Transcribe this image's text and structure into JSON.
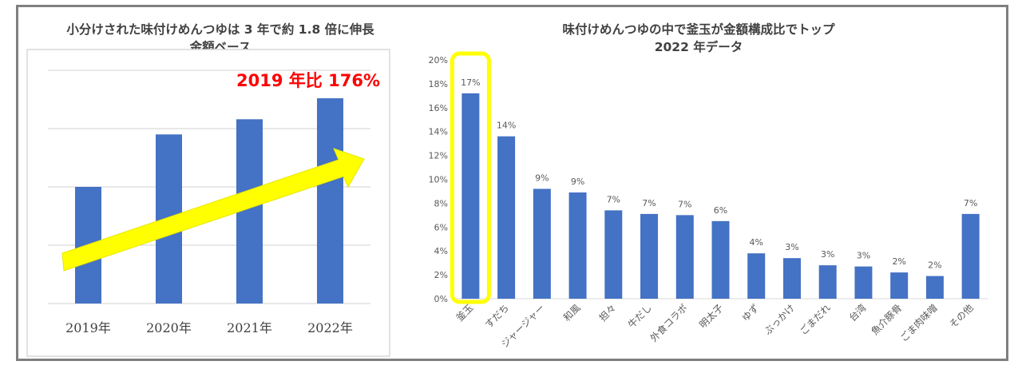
{
  "chart_data": [
    {
      "type": "bar",
      "title": "小分けされた味付けめんつゆは 3 年で約 1.8 倍に伸長",
      "subtitle": "金額ベース",
      "annotation": "2019 年比 176%",
      "categories": [
        "2019年",
        "2020年",
        "2021年",
        "2022年"
      ],
      "values": [
        100,
        145,
        158,
        176
      ],
      "value_unit": "index (2019 = 100)",
      "ylim": [
        0,
        200
      ],
      "grid": true,
      "y_tick_labels_shown": false,
      "trend_arrow": true,
      "colors": {
        "bar": "#4472c4",
        "arrow": "#ffff00",
        "annotation": "#ff0000"
      }
    },
    {
      "type": "bar",
      "title": "味付けめんつゆの中で釜玉が金額構成比でトップ",
      "subtitle": "2022 年データ",
      "categories": [
        "釜玉",
        "すだち",
        "ジャージャー",
        "和風",
        "担々",
        "牛だし",
        "外食コラボ",
        "明太子",
        "ゆず",
        "ぶっかけ",
        "ごまだれ",
        "台湾",
        "魚介豚骨",
        "ごま肉味噌",
        "その他"
      ],
      "values": [
        17.2,
        13.6,
        9.2,
        8.9,
        7.4,
        7.1,
        7.0,
        6.5,
        3.8,
        3.4,
        2.8,
        2.7,
        2.2,
        1.9,
        7.1
      ],
      "labels": [
        "17%",
        "14%",
        "9%",
        "9%",
        "7%",
        "7%",
        "7%",
        "6%",
        "4%",
        "3%",
        "3%",
        "3%",
        "2%",
        "2%",
        "7%"
      ],
      "y_ticks": [
        "0%",
        "2%",
        "4%",
        "6%",
        "8%",
        "10%",
        "12%",
        "14%",
        "16%",
        "18%",
        "20%"
      ],
      "ylim": [
        0,
        20
      ],
      "grid": false,
      "highlight_category": "釜玉",
      "colors": {
        "bar": "#4472c4",
        "highlight": "#ffff00",
        "axis": "#d9d9d9",
        "text": "#595959"
      }
    }
  ]
}
